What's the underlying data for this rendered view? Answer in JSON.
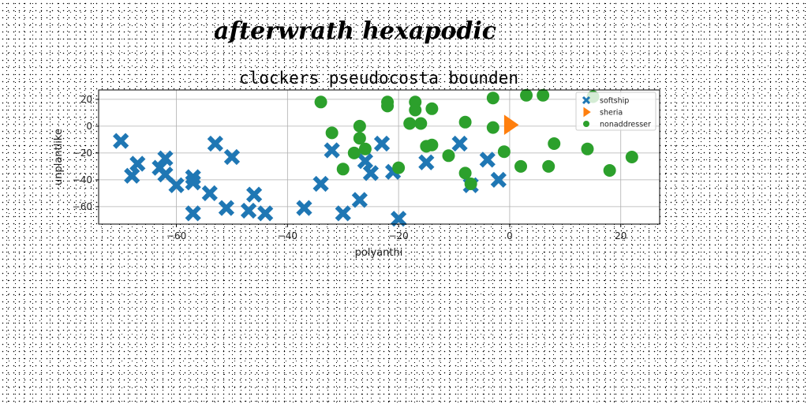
{
  "page": {
    "title": "afterwrath hexapodic"
  },
  "chart_data": {
    "type": "scatter",
    "title": "clockers pseudocosta bounden",
    "xlabel": "polyanthi",
    "ylabel": "unplantlike",
    "xlim": [
      -74,
      27
    ],
    "ylim": [
      -73,
      27
    ],
    "xticks": [
      -60,
      -40,
      -20,
      0,
      20
    ],
    "yticks": [
      -60,
      -40,
      -20,
      0,
      20
    ],
    "grid": true,
    "legend_position": "top-right",
    "series": [
      {
        "name": "softship",
        "marker": "x",
        "color": "#1f77b4",
        "points": [
          [
            -70,
            -11
          ],
          [
            -68,
            -37
          ],
          [
            -67,
            -28
          ],
          [
            -63,
            -31
          ],
          [
            -62,
            -24
          ],
          [
            -62,
            -36
          ],
          [
            -60,
            -44
          ],
          [
            -57,
            -38
          ],
          [
            -57,
            -42
          ],
          [
            -57,
            -65
          ],
          [
            -54,
            -50
          ],
          [
            -53,
            -13
          ],
          [
            -51,
            -61
          ],
          [
            -50,
            -23
          ],
          [
            -47,
            -63
          ],
          [
            -46,
            -51
          ],
          [
            -44,
            -65
          ],
          [
            -37,
            -61
          ],
          [
            -34,
            -43
          ],
          [
            -32,
            -18
          ],
          [
            -30,
            -65
          ],
          [
            -27,
            -55
          ],
          [
            -26,
            -26
          ],
          [
            -25,
            -35
          ],
          [
            -23,
            -13
          ],
          [
            -21,
            -34
          ],
          [
            -20,
            -69
          ],
          [
            -15,
            -27
          ],
          [
            -9,
            -13
          ],
          [
            -7,
            -44
          ],
          [
            -4,
            -25
          ],
          [
            -2,
            -40
          ]
        ]
      },
      {
        "name": "sheria",
        "marker": "triangle-right",
        "color": "#ff7f0e",
        "points": [
          [
            0,
            1
          ]
        ]
      },
      {
        "name": "nonaddresser",
        "marker": "o",
        "color": "#2ca02c",
        "points": [
          [
            -34,
            18
          ],
          [
            -32,
            -5
          ],
          [
            -30,
            -32
          ],
          [
            -28,
            -20
          ],
          [
            -27,
            0
          ],
          [
            -27,
            -9
          ],
          [
            -26,
            -17
          ],
          [
            -22,
            18
          ],
          [
            -22,
            15
          ],
          [
            -20,
            -31
          ],
          [
            -18,
            2
          ],
          [
            -17,
            18
          ],
          [
            -17,
            12
          ],
          [
            -16,
            2
          ],
          [
            -15,
            -15
          ],
          [
            -14,
            -14
          ],
          [
            -14,
            13
          ],
          [
            -11,
            -22
          ],
          [
            -8,
            -35
          ],
          [
            -8,
            3
          ],
          [
            -7,
            -43
          ],
          [
            -3,
            21
          ],
          [
            -3,
            -1
          ],
          [
            -1,
            -19
          ],
          [
            2,
            -30
          ],
          [
            3,
            23
          ],
          [
            6,
            23
          ],
          [
            7,
            -30
          ],
          [
            8,
            -13
          ],
          [
            14,
            -17
          ],
          [
            15,
            22
          ],
          [
            18,
            -33
          ],
          [
            22,
            -23
          ]
        ]
      }
    ]
  }
}
